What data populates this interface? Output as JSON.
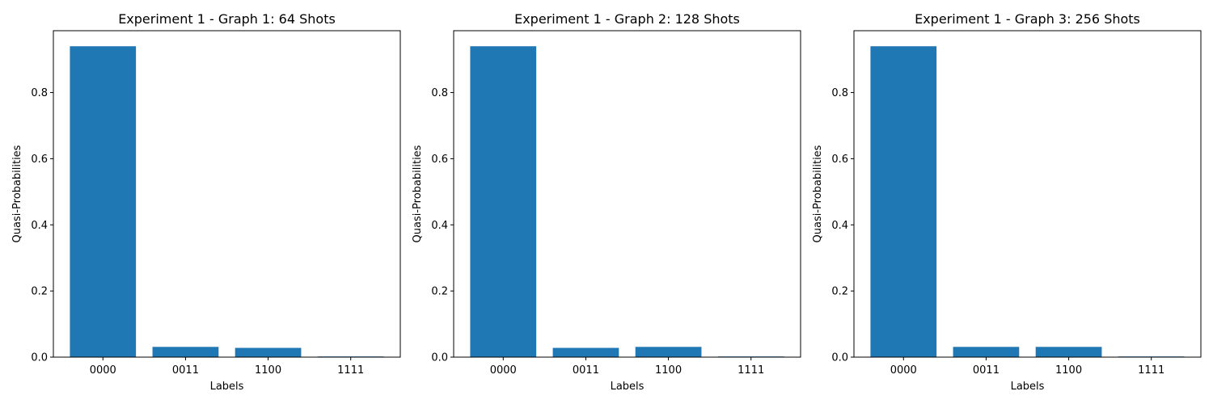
{
  "chart_data": [
    {
      "type": "bar",
      "title": "Experiment 1 - Graph 1: 64 Shots",
      "xlabel": "Labels",
      "ylabel": "Quasi-Probabilities",
      "categories": [
        "0000",
        "0011",
        "1100",
        "1111"
      ],
      "values": [
        0.94,
        0.031,
        0.028,
        0.002
      ],
      "ylim": [
        0,
        0.987
      ],
      "yticks": [
        0.0,
        0.2,
        0.4,
        0.6,
        0.8
      ],
      "ytick_labels": [
        "0.0",
        "0.2",
        "0.4",
        "0.6",
        "0.8"
      ],
      "grid": false,
      "bar_color": "#1f77b4"
    },
    {
      "type": "bar",
      "title": "Experiment 1 - Graph 2: 128 Shots",
      "xlabel": "Labels",
      "ylabel": "Quasi-Probabilities",
      "categories": [
        "0000",
        "0011",
        "1100",
        "1111"
      ],
      "values": [
        0.94,
        0.028,
        0.031,
        0.002
      ],
      "ylim": [
        0,
        0.987
      ],
      "yticks": [
        0.0,
        0.2,
        0.4,
        0.6,
        0.8
      ],
      "ytick_labels": [
        "0.0",
        "0.2",
        "0.4",
        "0.6",
        "0.8"
      ],
      "grid": false,
      "bar_color": "#1f77b4"
    },
    {
      "type": "bar",
      "title": "Experiment 1 - Graph 3: 256 Shots",
      "xlabel": "Labels",
      "ylabel": "Quasi-Probabilities",
      "categories": [
        "0000",
        "0011",
        "1100",
        "1111"
      ],
      "values": [
        0.94,
        0.031,
        0.031,
        0.002
      ],
      "ylim": [
        0,
        0.987
      ],
      "yticks": [
        0.0,
        0.2,
        0.4,
        0.6,
        0.8
      ],
      "ytick_labels": [
        "0.0",
        "0.2",
        "0.4",
        "0.6",
        "0.8"
      ],
      "grid": false,
      "bar_color": "#1f77b4"
    }
  ]
}
